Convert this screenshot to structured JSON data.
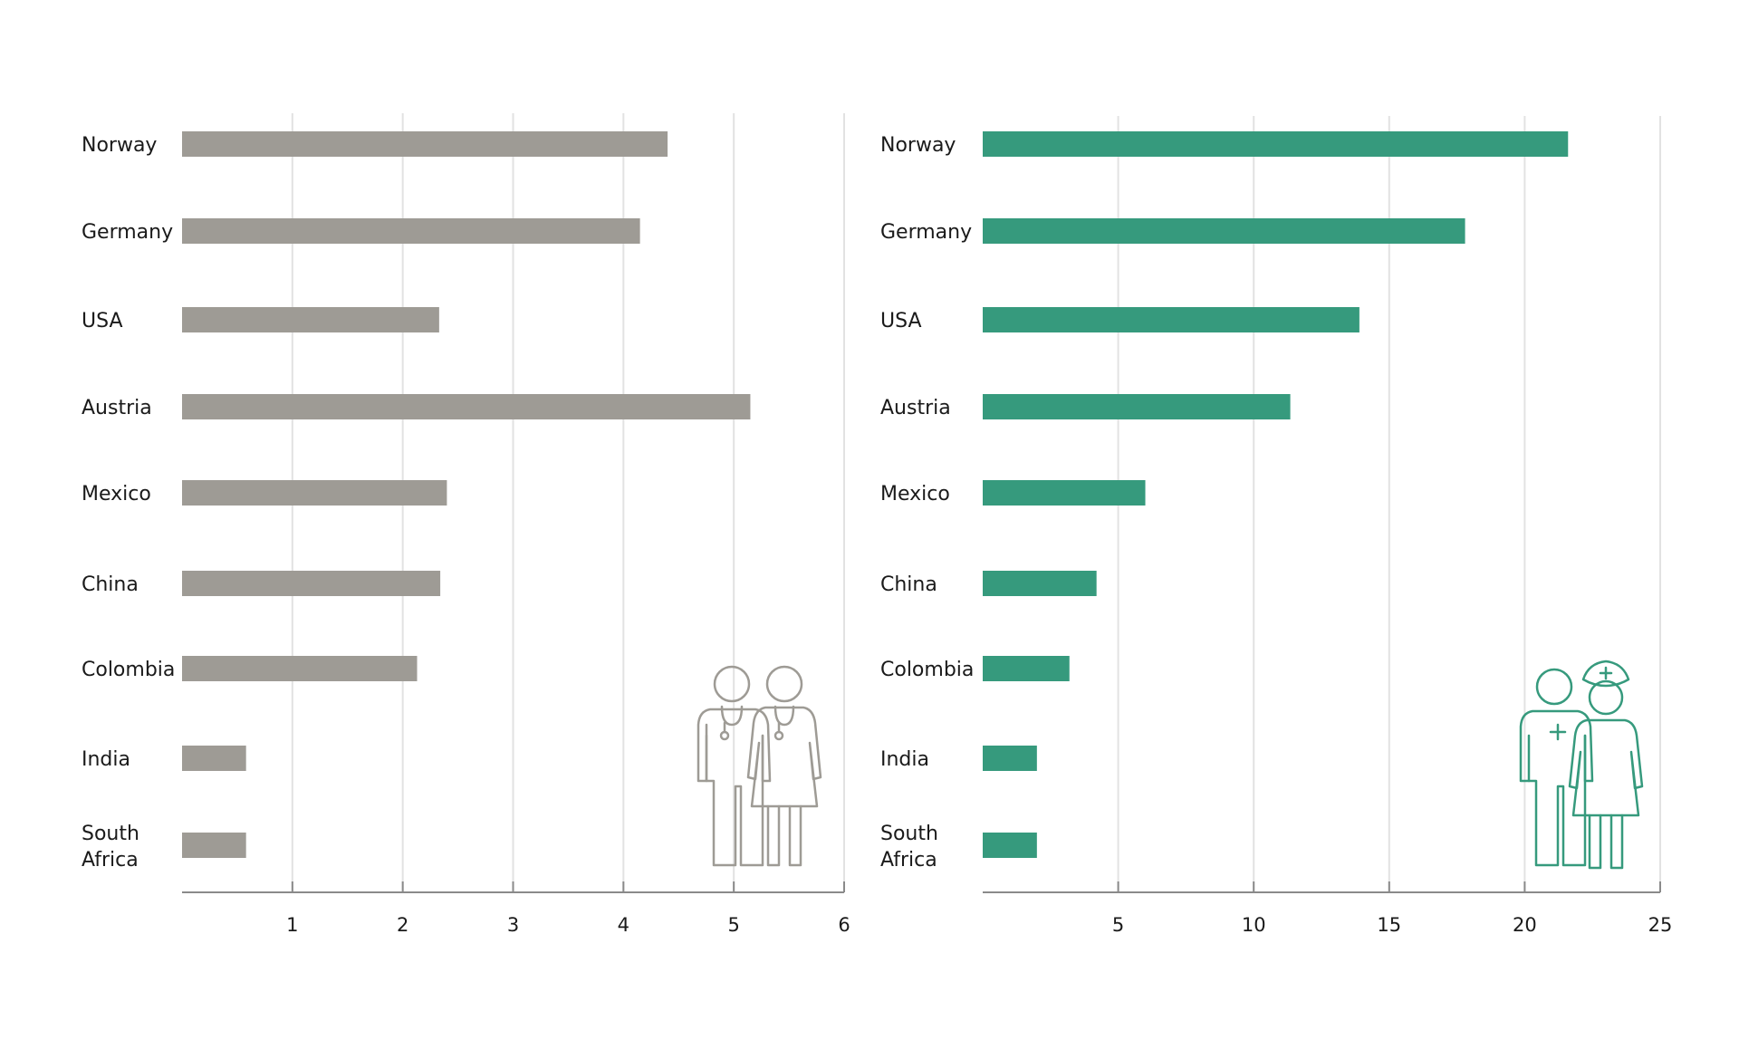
{
  "chart_data": [
    {
      "type": "bar",
      "orientation": "horizontal",
      "categories": [
        "Norway",
        "Germany",
        "USA",
        "Austria",
        "Mexico",
        "China",
        "Colombia",
        "India",
        "South Africa"
      ],
      "values": [
        4.4,
        4.15,
        2.33,
        5.15,
        2.4,
        2.34,
        2.13,
        0.58,
        0.58
      ],
      "xlim": [
        0,
        6
      ],
      "xticks": [
        "1",
        "2",
        "3",
        "4",
        "5",
        "6"
      ],
      "grid": true,
      "bar_color": "#9e9b95",
      "icon": "doctors-icon",
      "icon_color": "#9e9b95"
    },
    {
      "type": "bar",
      "orientation": "horizontal",
      "categories": [
        "Norway",
        "Germany",
        "USA",
        "Austria",
        "Mexico",
        "China",
        "Colombia",
        "India",
        "South Africa"
      ],
      "values": [
        21.6,
        17.8,
        13.9,
        11.35,
        6.0,
        4.2,
        3.2,
        2.0,
        2.0
      ],
      "xlim": [
        0,
        25
      ],
      "xticks": [
        "5",
        "10",
        "15",
        "20",
        "25"
      ],
      "grid": true,
      "bar_color": "#369a7d",
      "icon": "nurses-icon",
      "icon_color": "#369a7d"
    }
  ]
}
